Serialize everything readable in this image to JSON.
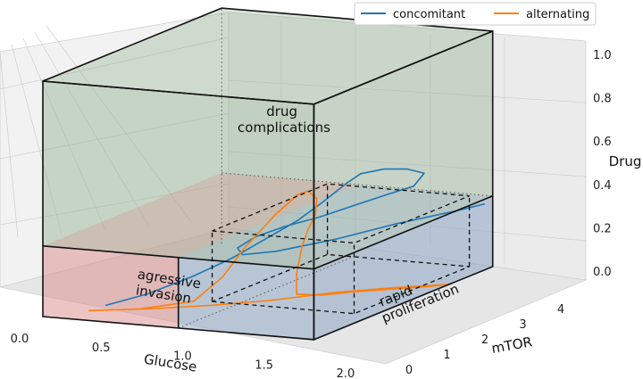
{
  "chart_data": {
    "type": "line",
    "projection": "3d",
    "xlabel": "Glucose",
    "ylabel": "mTOR",
    "zlabel": "Drug",
    "xticks": [
      "0.0",
      "0.5",
      "1.0",
      "1.5",
      "2.0"
    ],
    "yticks": [
      "0",
      "1",
      "2",
      "3",
      "4"
    ],
    "zticks": [
      "0.0",
      "0.2",
      "0.4",
      "0.6",
      "0.8",
      "1.0"
    ],
    "xlim": [
      0,
      2.1
    ],
    "ylim": [
      0,
      4.5
    ],
    "zlim": [
      0,
      1.05
    ],
    "grid": true,
    "legend_position": "top-right",
    "colors": {
      "concomitant": "#1f77b4",
      "alternating": "#ff7f0e",
      "drug_region": "#8fb08f",
      "invasion_region": "#d98a8a",
      "proliferation_region": "#8aa4c2"
    },
    "regions": [
      {
        "key": "drug",
        "label_lines": [
          "drug",
          "complications"
        ]
      },
      {
        "key": "invasion",
        "label_lines": [
          "agressive",
          "invasion"
        ]
      },
      {
        "key": "proliferation",
        "label_lines": [
          "rapid",
          "proliferation"
        ]
      }
    ],
    "series": [
      {
        "name": "concomitant",
        "points": [
          [
            0.3,
            0.6,
            0.02
          ],
          [
            0.5,
            1.0,
            0.05
          ],
          [
            0.7,
            1.5,
            0.1
          ],
          [
            0.85,
            2.0,
            0.15
          ],
          [
            0.95,
            2.5,
            0.2
          ],
          [
            1.05,
            3.0,
            0.25
          ],
          [
            1.1,
            3.5,
            0.3
          ],
          [
            1.15,
            3.9,
            0.35
          ],
          [
            1.2,
            4.1,
            0.38
          ],
          [
            1.35,
            4.2,
            0.4
          ],
          [
            1.5,
            4.3,
            0.4
          ],
          [
            1.6,
            4.4,
            0.38
          ],
          [
            1.55,
            4.3,
            0.33
          ],
          [
            1.4,
            4.1,
            0.3
          ],
          [
            1.25,
            3.8,
            0.27
          ],
          [
            1.1,
            3.4,
            0.24
          ],
          [
            0.95,
            3.0,
            0.22
          ],
          [
            0.85,
            2.6,
            0.2
          ],
          [
            0.8,
            2.3,
            0.17
          ],
          [
            0.9,
            2.1,
            0.16
          ],
          [
            1.1,
            2.3,
            0.17
          ],
          [
            1.4,
            2.8,
            0.2
          ],
          [
            1.7,
            3.4,
            0.24
          ],
          [
            2.0,
            4.0,
            0.27
          ],
          [
            2.1,
            4.3,
            0.28
          ]
        ]
      },
      {
        "name": "alternating",
        "points": [
          [
            0.2,
            0.5,
            0.0
          ],
          [
            0.5,
            0.8,
            0.0
          ],
          [
            0.8,
            1.2,
            0.02
          ],
          [
            0.9,
            1.6,
            0.1
          ],
          [
            0.95,
            2.0,
            0.2
          ],
          [
            1.0,
            2.6,
            0.3
          ],
          [
            1.05,
            3.0,
            0.36
          ],
          [
            1.1,
            3.1,
            0.37
          ],
          [
            1.2,
            3.0,
            0.35
          ],
          [
            1.25,
            2.8,
            0.3
          ],
          [
            1.28,
            2.5,
            0.25
          ],
          [
            1.3,
            2.3,
            0.2
          ],
          [
            1.32,
            2.1,
            0.1
          ],
          [
            1.35,
            2.0,
            0.02
          ],
          [
            1.45,
            2.3,
            0.0
          ],
          [
            1.6,
            2.6,
            0.0
          ],
          [
            1.8,
            2.9,
            0.0
          ],
          [
            2.0,
            3.2,
            0.0
          ],
          [
            2.1,
            3.4,
            0.0
          ],
          [
            1.8,
            3.0,
            0.0
          ],
          [
            1.5,
            2.5,
            0.0
          ],
          [
            1.2,
            1.8,
            0.0
          ],
          [
            0.9,
            1.3,
            0.0
          ],
          [
            0.6,
            0.9,
            0.0
          ],
          [
            0.4,
            0.7,
            0.0
          ]
        ]
      }
    ]
  }
}
